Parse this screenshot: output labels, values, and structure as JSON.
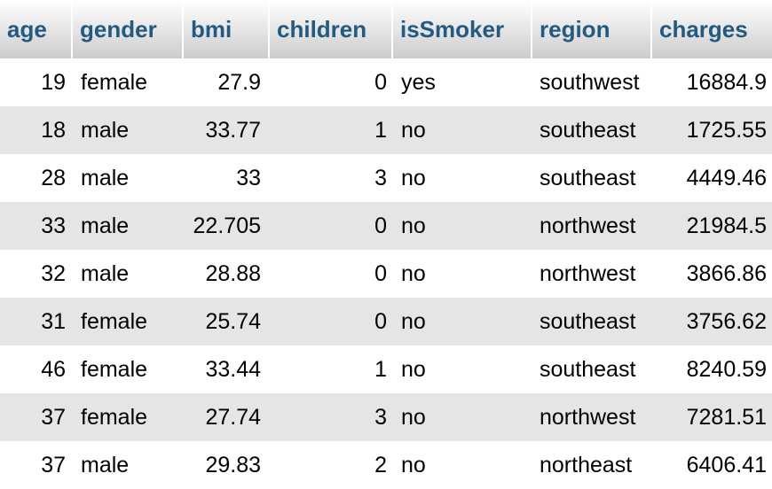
{
  "table": {
    "columns": [
      "age",
      "gender",
      "bmi",
      "children",
      "isSmoker",
      "region",
      "charges"
    ],
    "rows": [
      [
        "19",
        "female",
        "27.9",
        "0",
        "yes",
        "southwest",
        "16884.9"
      ],
      [
        "18",
        "male",
        "33.77",
        "1",
        "no",
        "southeast",
        "1725.55"
      ],
      [
        "28",
        "male",
        "33",
        "3",
        "no",
        "southeast",
        "4449.46"
      ],
      [
        "33",
        "male",
        "22.705",
        "0",
        "no",
        "northwest",
        "21984.5"
      ],
      [
        "32",
        "male",
        "28.88",
        "0",
        "no",
        "northwest",
        "3866.86"
      ],
      [
        "31",
        "female",
        "25.74",
        "0",
        "no",
        "southeast",
        "3756.62"
      ],
      [
        "46",
        "female",
        "33.44",
        "1",
        "no",
        "southeast",
        "8240.59"
      ],
      [
        "37",
        "female",
        "27.74",
        "3",
        "no",
        "northwest",
        "7281.51"
      ],
      [
        "37",
        "male",
        "29.83",
        "2",
        "no",
        "northeast",
        "6406.41"
      ]
    ]
  }
}
